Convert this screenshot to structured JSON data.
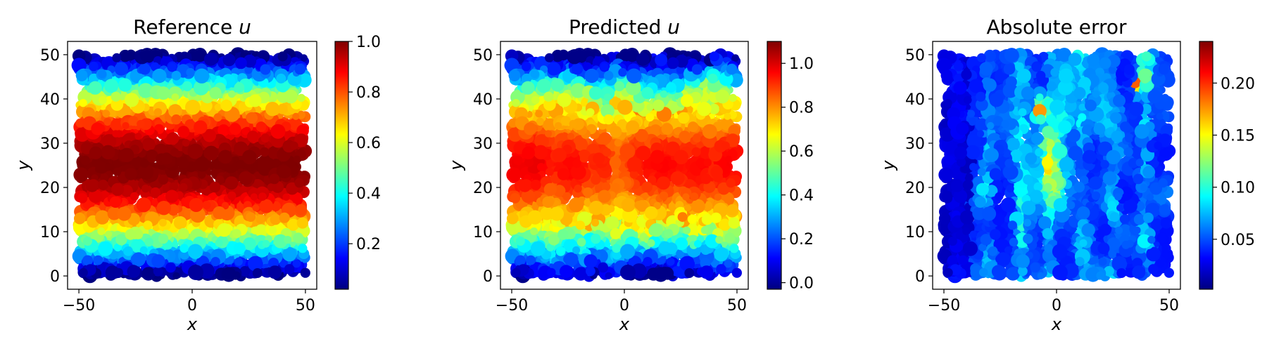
{
  "colormap": [
    "#00007f",
    "#0000ff",
    "#007fff",
    "#00ffff",
    "#7fff7f",
    "#ffff00",
    "#ff7f00",
    "#ff0000",
    "#7f0000"
  ],
  "chart_data": [
    {
      "type": "scatter",
      "title": "Reference u",
      "title_main": "Reference ",
      "title_var": "u",
      "xlabel": "x",
      "ylabel": "y",
      "xlim": [
        -55,
        55
      ],
      "ylim": [
        -3,
        53
      ],
      "xticks": [
        -50,
        0,
        50
      ],
      "yticks": [
        0,
        10,
        20,
        30,
        40,
        50
      ],
      "grid": false,
      "colorbar": {
        "range": [
          0.02,
          1.0
        ],
        "ticks": [
          0.2,
          0.4,
          0.6,
          0.8,
          1.0
        ],
        "tick_labels": [
          "0.2",
          "0.4",
          "0.6",
          "0.8",
          "1.0"
        ]
      },
      "field": "reference"
    },
    {
      "type": "scatter",
      "title": "Predicted u",
      "title_main": "Predicted ",
      "title_var": "u",
      "xlabel": "x",
      "ylabel": "y",
      "xlim": [
        -55,
        55
      ],
      "ylim": [
        -3,
        53
      ],
      "xticks": [
        -50,
        0,
        50
      ],
      "yticks": [
        0,
        10,
        20,
        30,
        40,
        50
      ],
      "grid": false,
      "colorbar": {
        "range": [
          -0.03,
          1.1
        ],
        "ticks": [
          0.0,
          0.2,
          0.4,
          0.6,
          0.8,
          1.0
        ],
        "tick_labels": [
          "0.0",
          "0.2",
          "0.4",
          "0.6",
          "0.8",
          "1.0"
        ]
      },
      "field": "predicted"
    },
    {
      "type": "scatter",
      "title": "Absolute error",
      "title_main": "Absolute error",
      "title_var": "",
      "xlabel": "x",
      "ylabel": "y",
      "xlim": [
        -55,
        55
      ],
      "ylim": [
        -3,
        53
      ],
      "xticks": [
        -50,
        0,
        50
      ],
      "yticks": [
        0,
        10,
        20,
        30,
        40,
        50
      ],
      "grid": false,
      "colorbar": {
        "range": [
          0.002,
          0.24
        ],
        "ticks": [
          0.05,
          0.1,
          0.15,
          0.2
        ],
        "tick_labels": [
          "0.05",
          "0.10",
          "0.15",
          "0.20"
        ]
      },
      "field": "error"
    }
  ]
}
